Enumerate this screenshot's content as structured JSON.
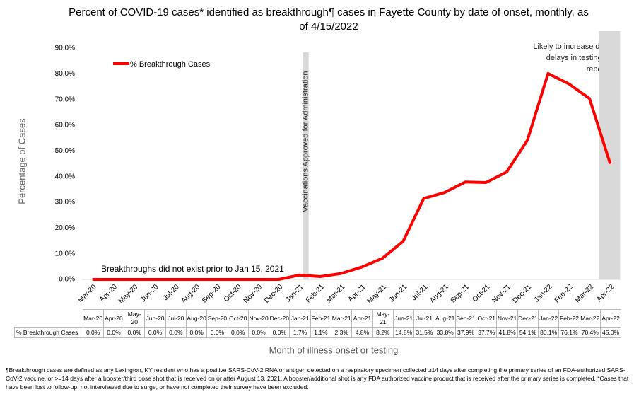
{
  "chart_data": {
    "type": "line",
    "title": "Percent of COVID-19 cases* identified as breakthrough¶ cases in Fayette County by date of onset, monthly, as of 4/15/2022",
    "y_label": "Percentage of Cases",
    "x_label": "Month of illness onset or testing",
    "categories": [
      "Mar-20",
      "Apr-20",
      "May-20",
      "Jun-20",
      "Jul-20",
      "Aug-20",
      "Sep-20",
      "Oct-20",
      "Nov-20",
      "Dec-20",
      "Jan-21",
      "Feb-21",
      "Mar-21",
      "Apr-21",
      "May-21",
      "Jun-21",
      "Jul-21",
      "Aug-21",
      "Sep-21",
      "Oct-21",
      "Nov-21",
      "Dec-21",
      "Jan-22",
      "Feb-22",
      "Mar-22",
      "Apr-22"
    ],
    "series": [
      {
        "name": "% Breakthrough Cases",
        "color": "#ff0000",
        "values": [
          0,
          0,
          0,
          0,
          0,
          0,
          0,
          0,
          0,
          0,
          1.7,
          1.1,
          2.3,
          4.8,
          8.2,
          14.8,
          31.5,
          33.8,
          37.9,
          37.7,
          41.8,
          54.1,
          80.1,
          76.1,
          70.4,
          45.0
        ],
        "value_labels": [
          "0.0%",
          "0.0%",
          "0.0%",
          "0.0%",
          "0.0%",
          "0.0%",
          "0.0%",
          "0.0%",
          "0.0%",
          "0.0%",
          "1.7%",
          "1.1%",
          "2.3%",
          "4.8%",
          "8.2%",
          "14.8%",
          "31.5%",
          "33.8%",
          "37.9%",
          "37.7%",
          "41.8%",
          "54.1%",
          "80.1%",
          "76.1%",
          "70.4%",
          "45.0%"
        ]
      }
    ],
    "ylim": [
      0,
      90
    ],
    "yticks": [
      {
        "value": 0,
        "label": "0.0%"
      },
      {
        "value": 10,
        "label": "10.0%"
      },
      {
        "value": 20,
        "label": "20.0%"
      },
      {
        "value": 30,
        "label": "30.0%"
      },
      {
        "value": 40,
        "label": "40.0%"
      },
      {
        "value": 50,
        "label": "50.0%"
      },
      {
        "value": 60,
        "label": "60.0%"
      },
      {
        "value": 70,
        "label": "70.0%"
      },
      {
        "value": 80,
        "label": "80.0%"
      },
      {
        "value": 90,
        "label": "90.0%"
      }
    ],
    "grid": false,
    "annotations": [
      "Vaccinations Approved for Administration",
      "Likely to increase due to delays in testing and reporting",
      "Breakthroughs did not exist prior to Jan 15, 2021"
    ],
    "footnote": "¶Breakthrough cases are defined as any Lexington, KY resident who has a positive SARS-CoV-2 RNA or antigen detected on a respiratory specimen collected ≥14 days after completing the primary series of an FDA-authorized SARS-CoV-2 vaccine, or >=14 days after a booster/third dose shot that is received on or after August 13, 2021.  A booster/additional shot is any FDA authorized vaccine product that is received after the primary series is completed. *Cases that have been lost to follow-up, not interviewed due to surge, or have not completed their survey have been excluded."
  }
}
